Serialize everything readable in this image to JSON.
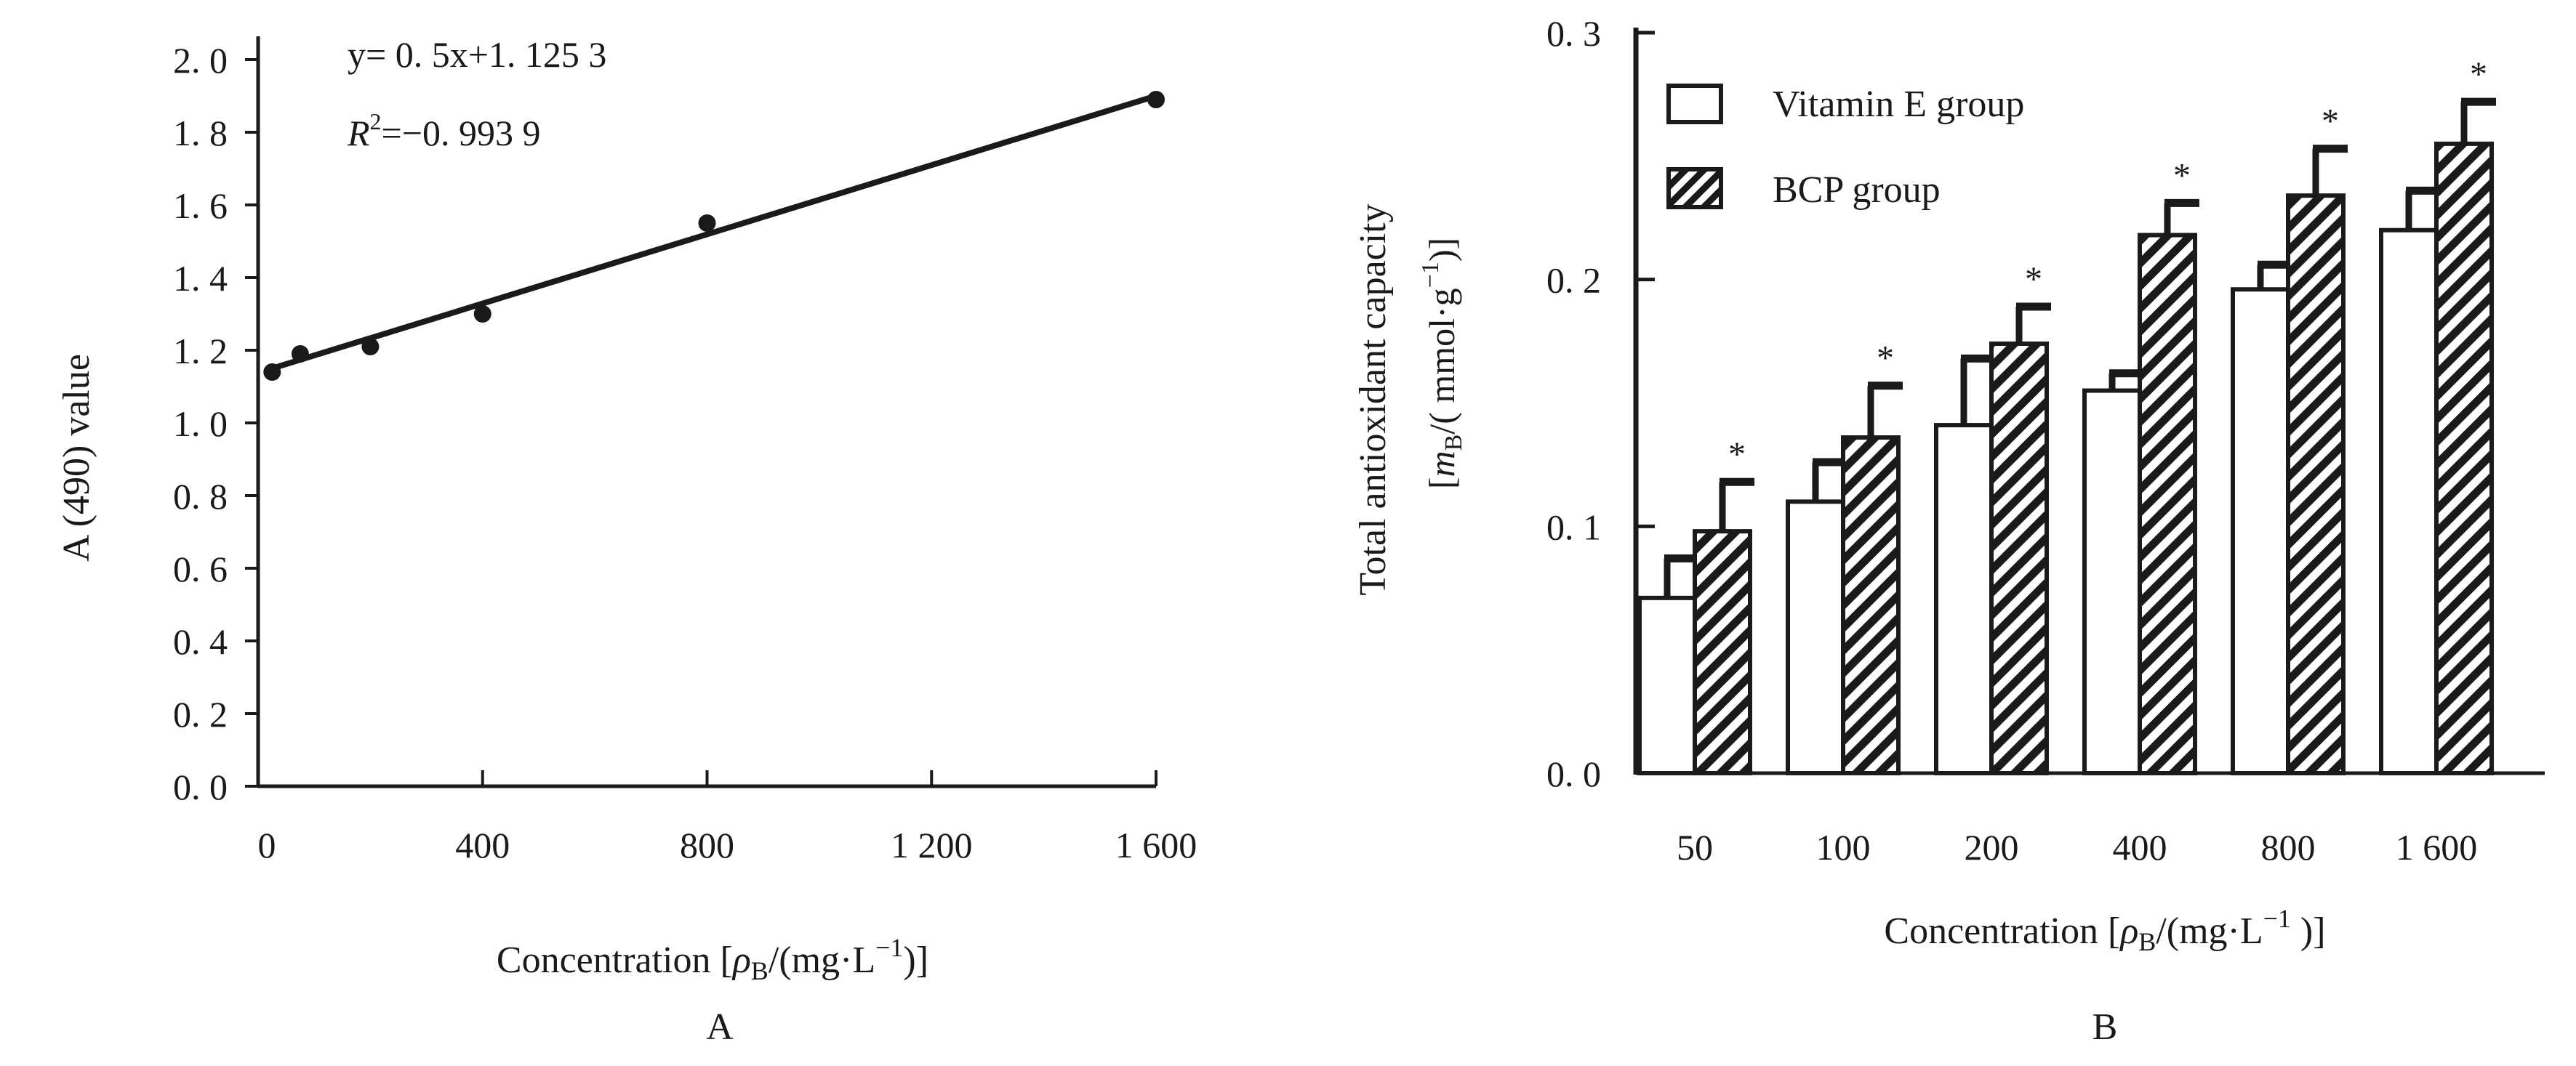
{
  "chart_data": [
    {
      "panel_label": "A",
      "type": "scatter",
      "equation": "y= 0. 5x+1. 125  3",
      "r2_prefix": "R",
      "r2_sup": "2",
      "r2_value": "=−0. 993  9",
      "xlabel": {
        "pre": "Concentration [",
        "rho": "ρ",
        "sub": "B",
        "post": "/(mg·L",
        "sup": "−1",
        "close": ")]"
      },
      "ylabel": "A (490) value",
      "xlim": [
        0,
        1600
      ],
      "ylim": [
        0,
        2.0
      ],
      "x_ticks": [
        {
          "value": 0,
          "label": "0"
        },
        {
          "value": 400,
          "label": "400"
        },
        {
          "value": 800,
          "label": "800"
        },
        {
          "value": 1200,
          "label": "1 200"
        },
        {
          "value": 1600,
          "label": "1 600"
        }
      ],
      "y_ticks": [
        {
          "value": 0.0,
          "label": "0. 0"
        },
        {
          "value": 0.2,
          "label": "0. 2"
        },
        {
          "value": 0.4,
          "label": "0. 4"
        },
        {
          "value": 0.6,
          "label": "0. 6"
        },
        {
          "value": 0.8,
          "label": "0. 8"
        },
        {
          "value": 1.0,
          "label": "1. 0"
        },
        {
          "value": 1.2,
          "label": "1. 2"
        },
        {
          "value": 1.4,
          "label": "1. 4"
        },
        {
          "value": 1.6,
          "label": "1. 6"
        },
        {
          "value": 1.8,
          "label": "1. 8"
        },
        {
          "value": 2.0,
          "label": "2. 0"
        }
      ],
      "points": [
        {
          "x": 25,
          "y": 1.14
        },
        {
          "x": 75,
          "y": 1.19
        },
        {
          "x": 200,
          "y": 1.21
        },
        {
          "x": 400,
          "y": 1.3
        },
        {
          "x": 800,
          "y": 1.55
        },
        {
          "x": 1600,
          "y": 1.89
        }
      ],
      "fit_line": {
        "x_start": 25,
        "y_start": 1.15,
        "x_end": 1600,
        "y_end": 1.9
      },
      "grid": false
    },
    {
      "panel_label": "B",
      "type": "bar",
      "categories": [
        "50",
        "100",
        "200",
        "400",
        "800",
        "1  600"
      ],
      "series": [
        {
          "name": "Vitamin E group",
          "fill": "white",
          "values": [
            0.071,
            0.11,
            0.141,
            0.155,
            0.196,
            0.22
          ],
          "errors": [
            0.016,
            0.016,
            0.027,
            0.007,
            0.01,
            0.016
          ]
        },
        {
          "name": "BCP group",
          "fill": "hatched",
          "values": [
            0.098,
            0.136,
            0.174,
            0.218,
            0.234,
            0.255
          ],
          "errors": [
            0.02,
            0.021,
            0.015,
            0.013,
            0.019,
            0.017
          ]
        }
      ],
      "significance_marker": "*",
      "ylabel_line1": "Total antioxidant capacity",
      "ylabel_line2": {
        "pre": "[",
        "m": "m",
        "sub": "B",
        "post": "/( mmol·g",
        "sup": "−1",
        "close": ")]"
      },
      "xlabel": {
        "pre": "Concentration [",
        "rho": "ρ",
        "sub": "B",
        "post": "/(mg·L",
        "sup": "−1",
        "close": " )]"
      },
      "ylim": [
        0,
        0.3
      ],
      "y_ticks": [
        {
          "value": 0.0,
          "label": "0. 0"
        },
        {
          "value": 0.1,
          "label": "0. 1"
        },
        {
          "value": 0.2,
          "label": "0. 2"
        },
        {
          "value": 0.3,
          "label": "0. 3"
        }
      ],
      "legend_position": "top-left",
      "grid": false
    }
  ]
}
